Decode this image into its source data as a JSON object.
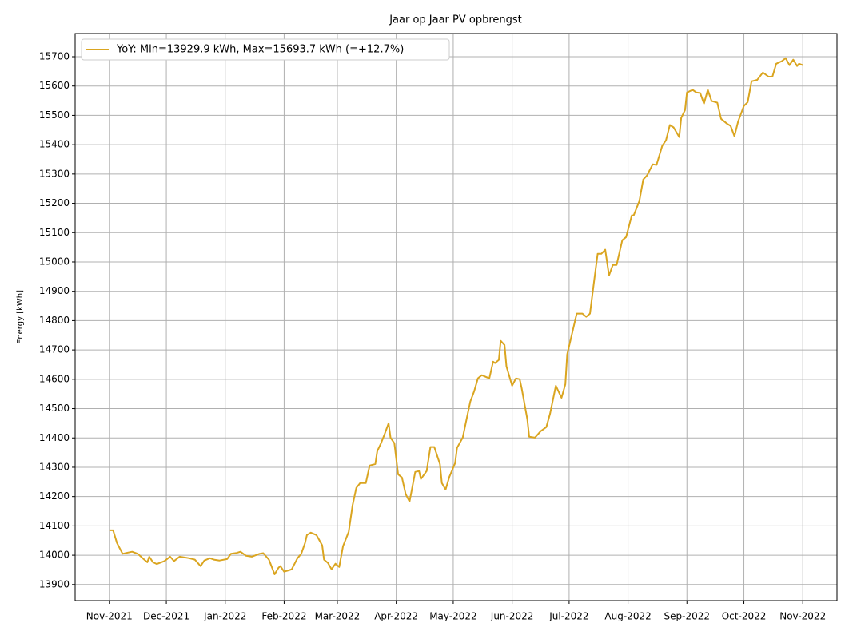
{
  "chart_data": {
    "type": "line",
    "title": "Jaar op Jaar PV opbrengst",
    "y_label": "Energy [kWh]",
    "x": [
      0,
      2,
      4,
      7,
      9,
      12,
      15,
      18,
      20,
      21,
      23,
      25,
      29,
      32,
      34,
      37,
      42,
      45,
      48,
      50,
      53,
      55,
      58,
      62,
      64,
      67,
      69,
      72,
      75,
      79,
      81,
      84,
      87,
      89,
      90,
      92,
      95,
      96,
      99,
      101,
      103,
      104,
      106,
      109,
      112,
      113,
      115,
      117,
      119,
      121,
      123,
      126,
      128,
      130,
      132,
      135,
      137,
      140,
      141,
      143,
      145,
      147,
      148,
      150,
      152,
      154,
      156,
      158,
      161,
      163,
      164,
      167,
      169,
      171,
      174,
      175,
      177,
      179,
      182,
      183,
      186,
      188,
      190,
      192,
      194,
      196,
      200,
      202,
      203,
      205,
      206,
      208,
      209,
      212,
      214,
      216,
      217,
      220,
      221,
      224,
      227,
      230,
      232,
      235,
      238,
      240,
      241,
      244,
      246,
      249,
      251,
      253,
      255,
      257,
      259,
      261,
      263,
      265,
      267,
      270,
      272,
      275,
      276,
      279,
      281,
      283,
      286,
      288,
      291,
      293,
      295,
      297,
      300,
      301,
      303,
      304,
      307,
      309,
      311,
      313,
      315,
      317,
      320,
      322,
      325,
      327,
      329,
      331,
      334,
      336,
      338,
      341,
      344,
      347,
      349,
      351,
      354,
      356,
      358,
      360,
      362,
      363,
      365
    ],
    "series": [
      {
        "name": "YoY: Min=13929.9 kWh, Max=15693.7 kWh (=+12.7%)",
        "color": "#daa520",
        "values": [
          14085,
          14085,
          14042,
          14005,
          14008,
          14012,
          14005,
          13987,
          13976,
          13995,
          13976,
          13970,
          13980,
          13995,
          13980,
          13995,
          13990,
          13985,
          13963,
          13982,
          13990,
          13985,
          13982,
          13987,
          14005,
          14008,
          14012,
          13998,
          13995,
          14005,
          14007,
          13985,
          13935,
          13957,
          13963,
          13944,
          13950,
          13952,
          13990,
          14005,
          14042,
          14069,
          14077,
          14069,
          14034,
          13985,
          13974,
          13952,
          13971,
          13960,
          14031,
          14080,
          14170,
          14230,
          14246,
          14246,
          14306,
          14311,
          14355,
          14382,
          14415,
          14450,
          14401,
          14382,
          14276,
          14265,
          14208,
          14183,
          14284,
          14287,
          14260,
          14287,
          14369,
          14369,
          14311,
          14246,
          14224,
          14268,
          14314,
          14366,
          14401,
          14464,
          14524,
          14559,
          14603,
          14614,
          14603,
          14660,
          14655,
          14666,
          14731,
          14717,
          14644,
          14578,
          14603,
          14600,
          14570,
          14464,
          14404,
          14401,
          14423,
          14437,
          14483,
          14578,
          14537,
          14583,
          14685,
          14769,
          14824,
          14824,
          14813,
          14824,
          14927,
          15028,
          15028,
          15042,
          14954,
          14990,
          14990,
          15074,
          15085,
          15159,
          15159,
          15208,
          15281,
          15295,
          15333,
          15331,
          15396,
          15415,
          15467,
          15459,
          15426,
          15491,
          15518,
          15578,
          15587,
          15578,
          15576,
          15540,
          15587,
          15549,
          15543,
          15488,
          15472,
          15464,
          15429,
          15480,
          15532,
          15545,
          15616,
          15621,
          15646,
          15632,
          15632,
          15676,
          15685,
          15695,
          15671,
          15690,
          15668,
          15676,
          15671
        ]
      }
    ],
    "xlim": [
      -18,
      383
    ],
    "xticks": [
      {
        "value": 0,
        "label": "Nov-2021"
      },
      {
        "value": 30,
        "label": "Dec-2021"
      },
      {
        "value": 61,
        "label": "Jan-2022"
      },
      {
        "value": 92,
        "label": "Feb-2022"
      },
      {
        "value": 120,
        "label": "Mar-2022"
      },
      {
        "value": 151,
        "label": "Apr-2022"
      },
      {
        "value": 181,
        "label": "May-2022"
      },
      {
        "value": 212,
        "label": "Jun-2022"
      },
      {
        "value": 242,
        "label": "Jul-2022"
      },
      {
        "value": 273,
        "label": "Aug-2022"
      },
      {
        "value": 304,
        "label": "Sep-2022"
      },
      {
        "value": 334,
        "label": "Oct-2022"
      },
      {
        "value": 365,
        "label": "Nov-2022"
      }
    ],
    "ylim": [
      13845,
      15779
    ],
    "yticks": [
      13900,
      14000,
      14100,
      14200,
      14300,
      14400,
      14500,
      14600,
      14700,
      14800,
      14900,
      15000,
      15100,
      15200,
      15300,
      15400,
      15500,
      15600,
      15700
    ],
    "grid": true,
    "legend": "upper left"
  }
}
